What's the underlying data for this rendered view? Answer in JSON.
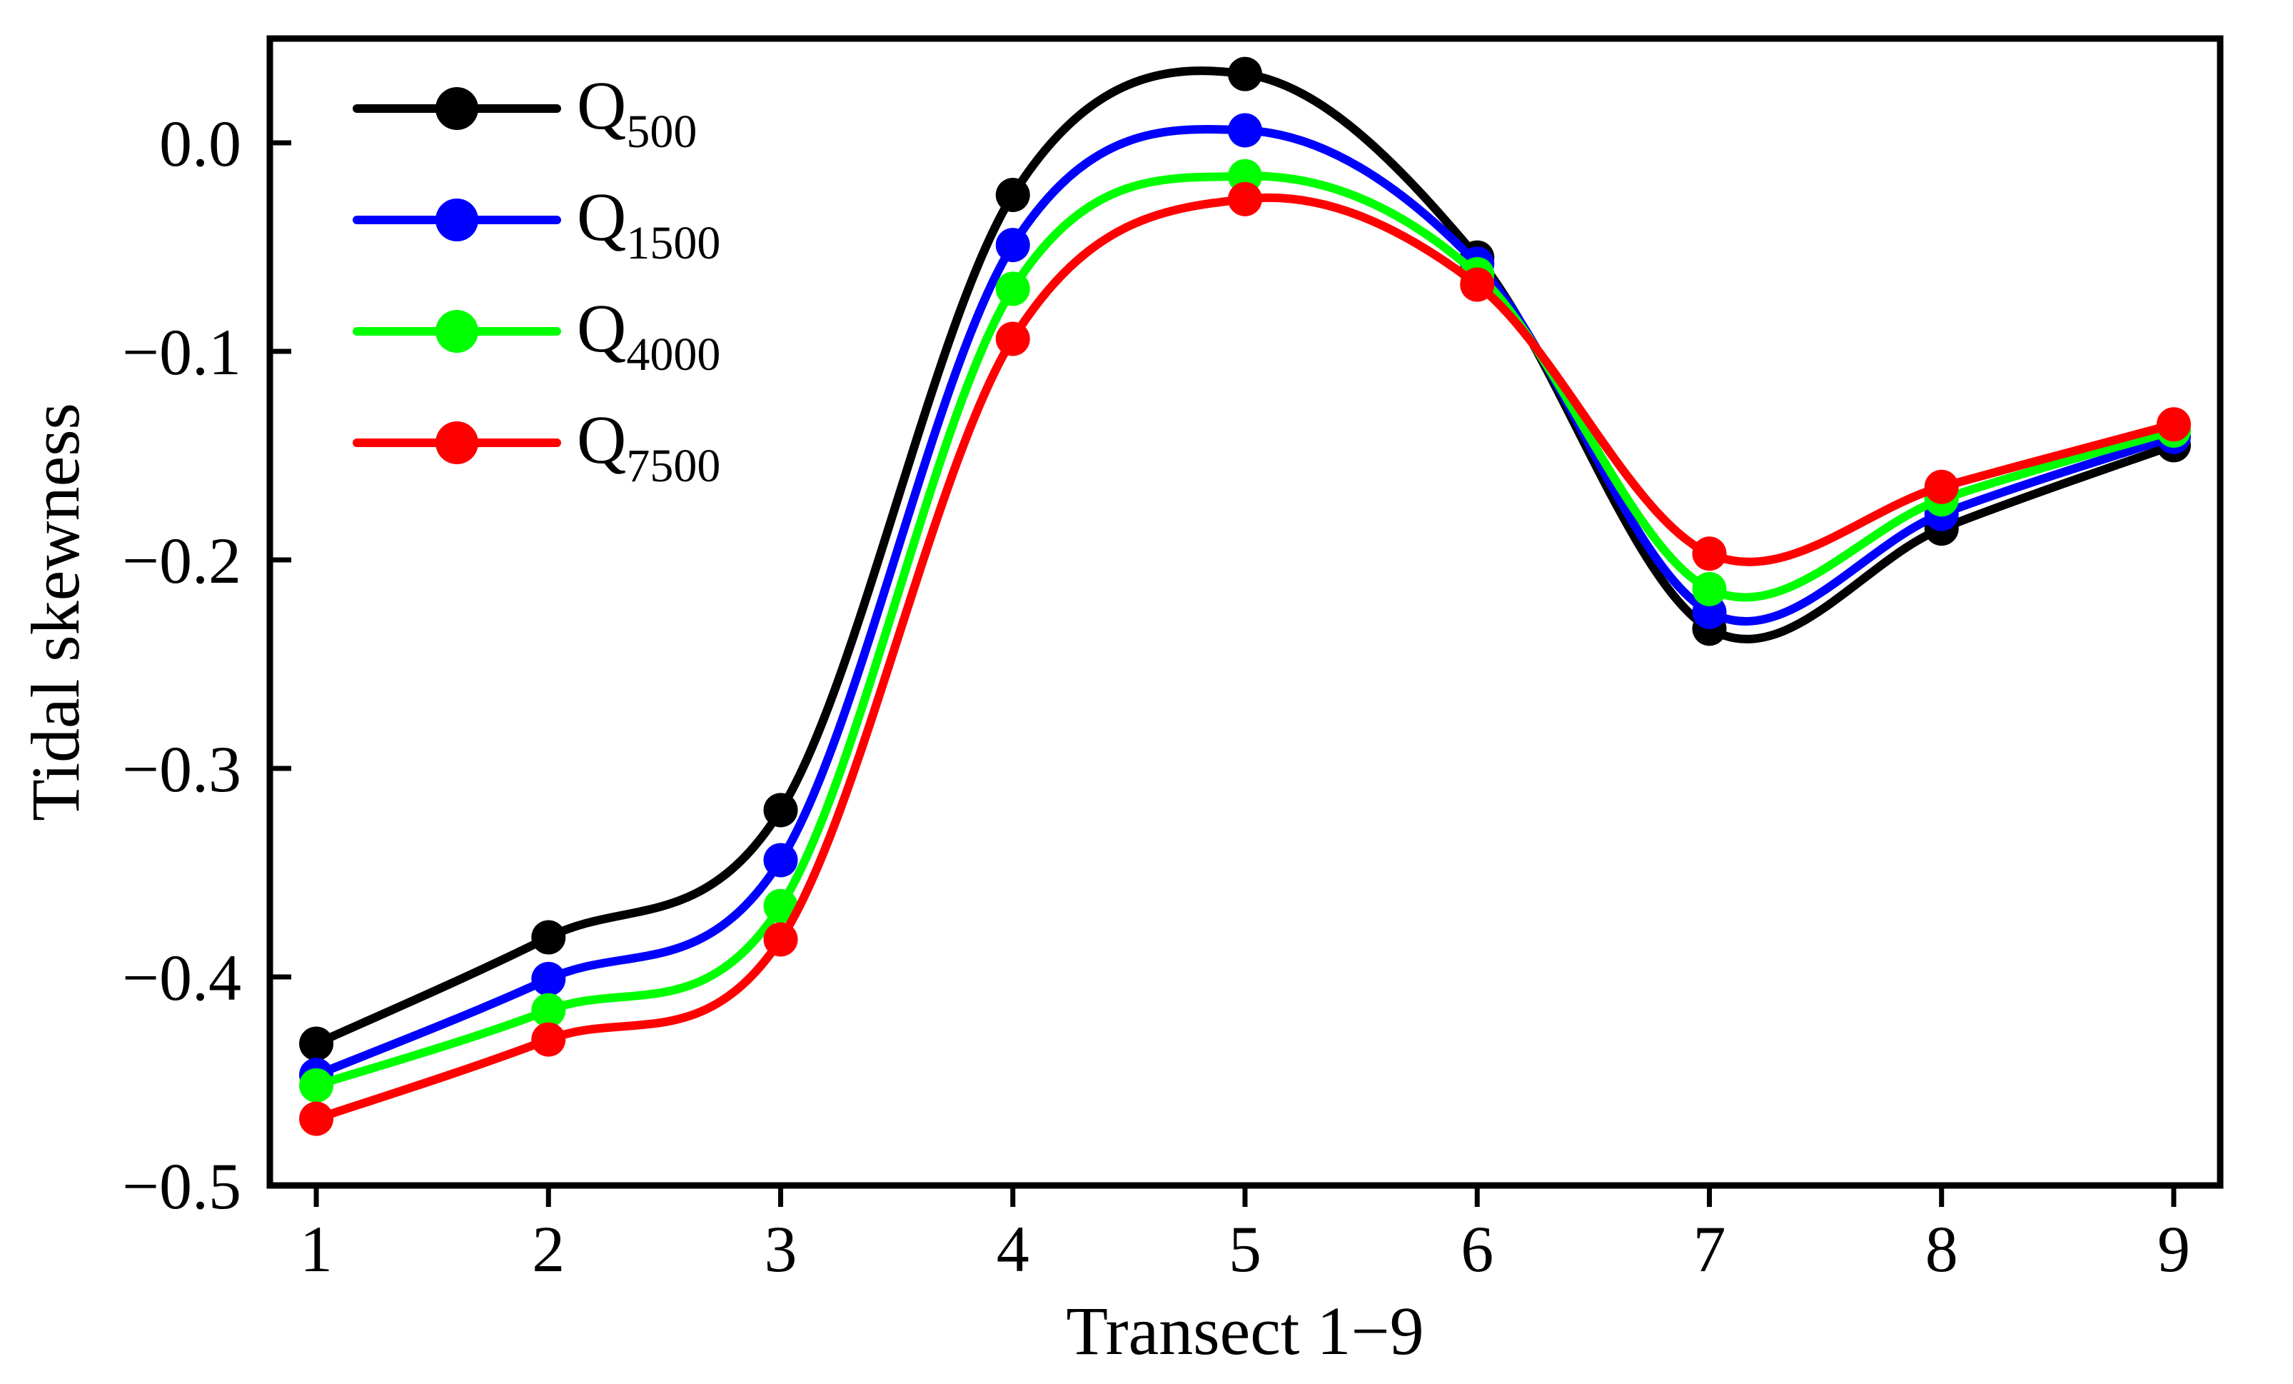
{
  "chart_data": {
    "type": "line",
    "title": "",
    "xlabel": "Transect 1−9",
    "ylabel": "Tidal skewness",
    "x": [
      1,
      2,
      3,
      4,
      5,
      6,
      7,
      8,
      9
    ],
    "xlim": [
      0.8,
      9.2
    ],
    "ylim": [
      -0.5,
      0.05
    ],
    "xticks": [
      1,
      2,
      3,
      4,
      5,
      6,
      7,
      8,
      9
    ],
    "xtick_labels": [
      "1",
      "2",
      "3",
      "4",
      "5",
      "6",
      "7",
      "8",
      "9"
    ],
    "yticks": [
      0.0,
      -0.1,
      -0.2,
      -0.3,
      -0.4,
      -0.5
    ],
    "ytick_labels": [
      "0.0",
      "−0.1",
      "−0.2",
      "−0.3",
      "−0.4",
      "−0.5"
    ],
    "grid": false,
    "legend_position": "top-left",
    "series": [
      {
        "name": "Q",
        "subscript": "500",
        "color": "#000000",
        "values": [
          -0.432,
          -0.381,
          -0.32,
          -0.025,
          0.033,
          -0.055,
          -0.233,
          -0.185,
          -0.145
        ]
      },
      {
        "name": "Q",
        "subscript": "1500",
        "color": "#0000ff",
        "values": [
          -0.447,
          -0.401,
          -0.344,
          -0.049,
          0.006,
          -0.058,
          -0.225,
          -0.178,
          -0.141
        ]
      },
      {
        "name": "Q",
        "subscript": "4000",
        "color": "#00ff00",
        "values": [
          -0.452,
          -0.416,
          -0.366,
          -0.07,
          -0.016,
          -0.063,
          -0.214,
          -0.171,
          -0.138
        ]
      },
      {
        "name": "Q",
        "subscript": "7500",
        "color": "#ff0000",
        "values": [
          -0.468,
          -0.43,
          -0.382,
          -0.094,
          -0.027,
          -0.068,
          -0.197,
          -0.165,
          -0.135
        ]
      }
    ]
  }
}
